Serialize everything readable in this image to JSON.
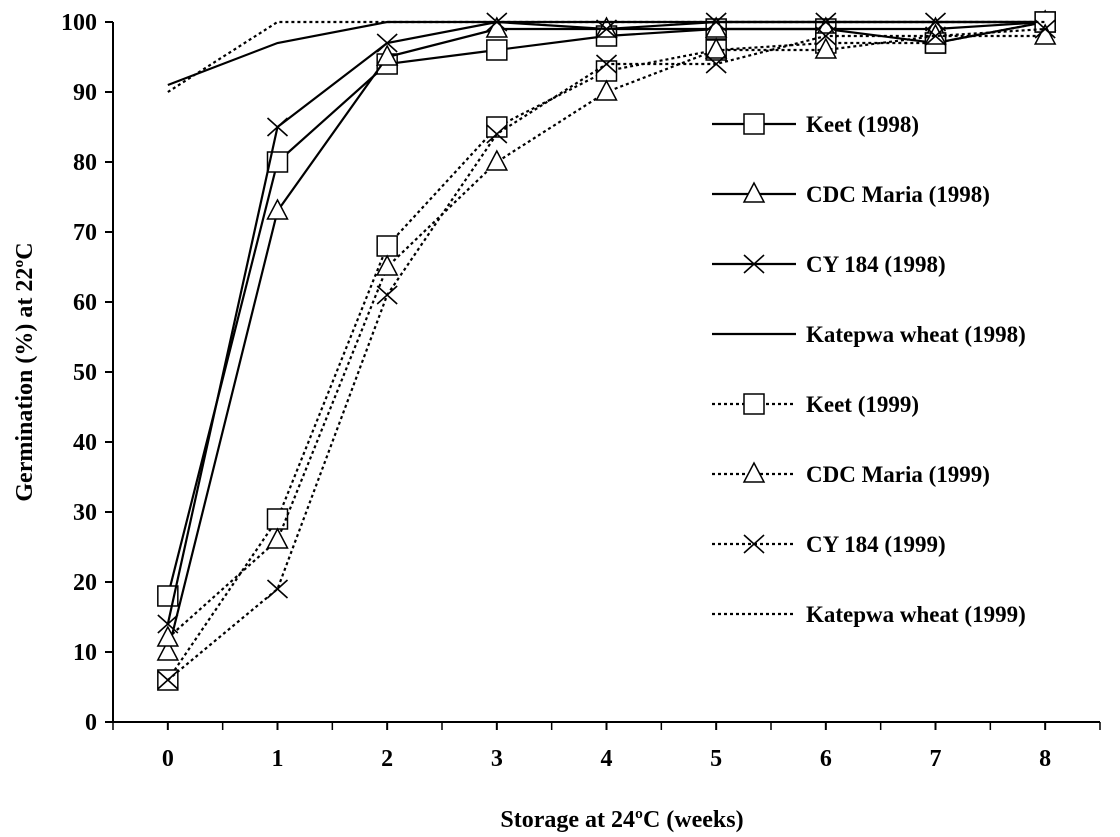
{
  "chart_data": {
    "type": "line",
    "xlabel": "Storage at 24ºC (weeks)",
    "ylabel": "Germination (%) at 22ºC",
    "xlim": [
      -0.5,
      8.5
    ],
    "ylim": [
      0,
      100
    ],
    "x_ticks": [
      "0",
      "1",
      "2",
      "3",
      "4",
      "5",
      "6",
      "7",
      "8"
    ],
    "y_ticks": [
      "0",
      "10",
      "20",
      "30",
      "40",
      "50",
      "60",
      "70",
      "80",
      "90",
      "100"
    ],
    "grid": false,
    "legend_position": "right",
    "x": [
      0,
      1,
      2,
      3,
      4,
      5,
      6,
      7,
      8
    ],
    "series": [
      {
        "name": "Keet (1998)",
        "marker": "square",
        "dash": "solid",
        "values": [
          18,
          80,
          94,
          96,
          98,
          99,
          99,
          97,
          100
        ]
      },
      {
        "name": "CDC Maria (1998)",
        "marker": "triangle",
        "dash": "solid",
        "values": [
          10,
          73,
          95,
          99,
          99,
          99,
          99,
          99,
          100
        ]
      },
      {
        "name": "CY 184 (1998)",
        "marker": "x",
        "dash": "solid",
        "values": [
          14,
          85,
          97,
          100,
          99,
          100,
          100,
          100,
          100
        ]
      },
      {
        "name": "Katepwa wheat (1998)",
        "marker": "none",
        "dash": "solid",
        "values": [
          91,
          97,
          100,
          100,
          100,
          100,
          100,
          100,
          100
        ]
      },
      {
        "name": "Keet (1999)",
        "marker": "square",
        "dash": "dotted",
        "values": [
          6,
          29,
          68,
          85,
          93,
          96,
          97,
          97,
          100
        ]
      },
      {
        "name": "CDC Maria (1999)",
        "marker": "triangle",
        "dash": "dotted",
        "values": [
          12,
          26,
          65,
          80,
          90,
          96,
          96,
          98,
          98
        ]
      },
      {
        "name": "CY 184 (1999)",
        "marker": "x",
        "dash": "dotted",
        "values": [
          6,
          19,
          61,
          84,
          94,
          94,
          98,
          98,
          99
        ]
      },
      {
        "name": "Katepwa wheat (1999)",
        "marker": "none",
        "dash": "dotted",
        "values": [
          90,
          100,
          100,
          100,
          100,
          100,
          100,
          100,
          100
        ]
      }
    ]
  }
}
